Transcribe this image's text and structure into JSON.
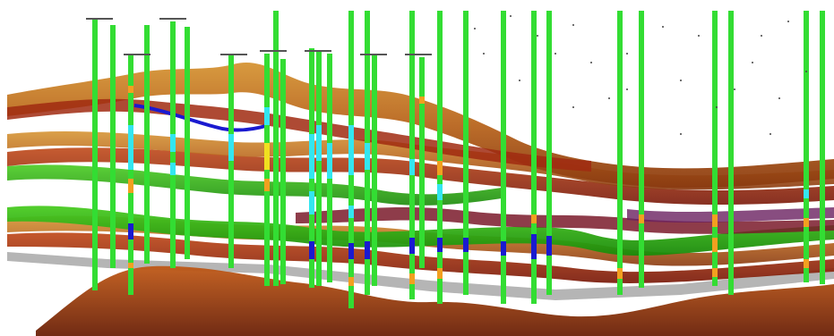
{
  "scene": {
    "background": "#ffffff",
    "colors": {
      "well_green": "#33dd33",
      "segment_cyan": "#33e6f0",
      "segment_blue": "#1a1ad0",
      "segment_orange": "#f2a020",
      "segment_yellow": "#f0e020",
      "horizon_brown": "#b8651e",
      "horizon_tan": "#c8801a",
      "horizon_red": "#a02a10",
      "horizon_green": "#22aa11",
      "horizon_maroon": "#7a1a1a",
      "basement_grey": "#a8a8a8"
    },
    "well_labels": [
      "",
      "",
      "",
      "",
      "",
      "",
      "",
      "",
      "",
      ""
    ]
  }
}
